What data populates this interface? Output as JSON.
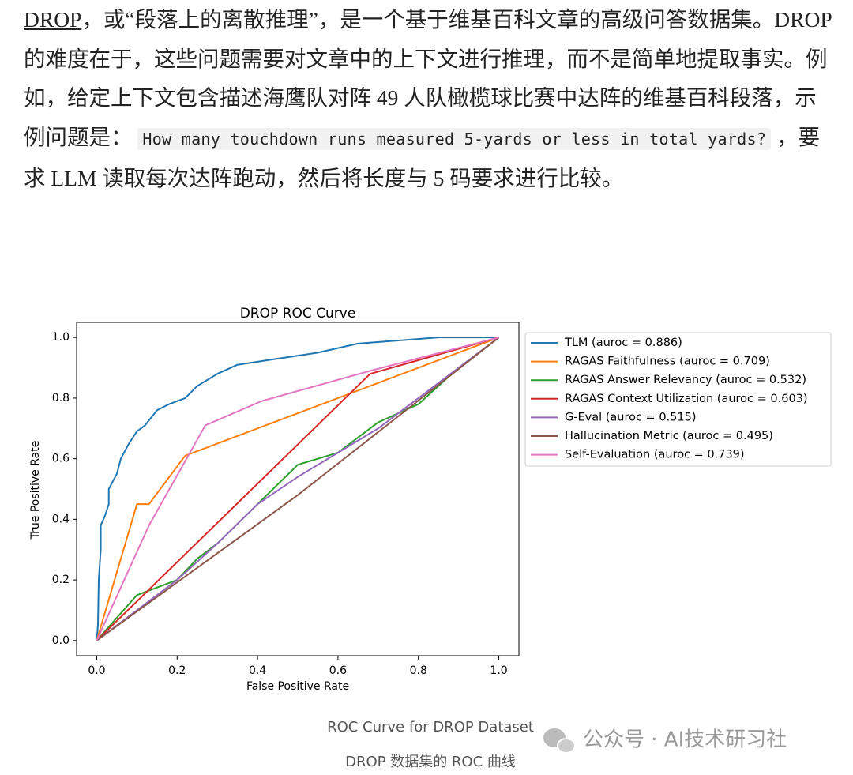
{
  "paragraph": {
    "link": "DROP",
    "text1": "，或“段落上的离散推理”，是一个基于维基百科文章的高级问答数据集。DROP 的难度在于，这些问题需要对文章中的上下文进行推理，而不是简单地提取事实。例如，给定上下文包含描述海鹰队对阵 49 人队橄榄球比赛中达阵的维基百科段落，示例问题是：",
    "code": "How many touchdown runs measured 5-yards or less in total yards?",
    "text2": "，要求 LLM 读取每次达阵跑动，然后将长度与 5 码要求进行比较。"
  },
  "chart_data": {
    "type": "line",
    "title": "DROP ROC Curve",
    "xlabel": "False Positive Rate",
    "ylabel": "True Positive Rate",
    "xlim": [
      -0.05,
      1.05
    ],
    "ylim": [
      -0.05,
      1.05
    ],
    "xticks": [
      {
        "value": 0,
        "label": "0.0"
      },
      0.2,
      0.4,
      0.6,
      0.8,
      {
        "value": 1,
        "label": "1.0"
      }
    ],
    "yticks": [
      {
        "value": 0,
        "label": "0.0"
      },
      0.2,
      0.4,
      0.6,
      0.8,
      {
        "value": 1,
        "label": "1.0"
      }
    ],
    "grid": false,
    "legend": "outside-upper-right",
    "series": [
      {
        "name": "TLM (auroc = 0.886)",
        "color": "#1f77b4",
        "x": [
          0,
          0.003,
          0.005,
          0.01,
          0.01,
          0.02,
          0.03,
          0.03,
          0.05,
          0.06,
          0.08,
          0.1,
          0.12,
          0.15,
          0.18,
          0.22,
          0.25,
          0.3,
          0.35,
          0.45,
          0.55,
          0.65,
          0.75,
          0.85,
          1
        ],
        "values": [
          0,
          0.05,
          0.2,
          0.3,
          0.38,
          0.41,
          0.45,
          0.5,
          0.55,
          0.6,
          0.65,
          0.69,
          0.71,
          0.76,
          0.78,
          0.8,
          0.84,
          0.88,
          0.91,
          0.93,
          0.95,
          0.98,
          0.99,
          1,
          1
        ]
      },
      {
        "name": "RAGAS Faithfulness (auroc = 0.709)",
        "color": "#ff7f0e",
        "x": [
          0,
          0.1,
          0.13,
          0.22,
          1
        ],
        "values": [
          0,
          0.45,
          0.45,
          0.61,
          1
        ]
      },
      {
        "name": "RAGAS Answer Relevancy (auroc = 0.532)",
        "color": "#2ca02c",
        "x": [
          0,
          0.1,
          0.2,
          0.25,
          0.3,
          0.4,
          0.5,
          0.6,
          0.7,
          0.8,
          0.9,
          1
        ],
        "values": [
          0,
          0.15,
          0.2,
          0.27,
          0.32,
          0.45,
          0.58,
          0.62,
          0.72,
          0.78,
          0.9,
          1
        ]
      },
      {
        "name": "RAGAS Context Utilization (auroc = 0.603)",
        "color": "#d62728",
        "x": [
          0,
          0.68,
          1
        ],
        "values": [
          0,
          0.88,
          1
        ]
      },
      {
        "name": "G-Eval (auroc = 0.515)",
        "color": "#9467bd",
        "x": [
          0,
          0.2,
          0.3,
          0.4,
          0.5,
          0.6,
          0.7,
          0.8,
          0.9,
          1
        ],
        "values": [
          0,
          0.2,
          0.32,
          0.45,
          0.54,
          0.62,
          0.7,
          0.8,
          0.9,
          1
        ]
      },
      {
        "name": "Hallucination Metric (auroc = 0.495)",
        "color": "#8c564b",
        "x": [
          0,
          0.5,
          1
        ],
        "values": [
          0,
          0.48,
          1
        ]
      },
      {
        "name": "Self-Evaluation (auroc = 0.739)",
        "color": "#e377c2",
        "x": [
          0,
          0.13,
          0.27,
          0.41,
          0.68,
          1
        ],
        "values": [
          0,
          0.38,
          0.71,
          0.79,
          0.89,
          1
        ]
      }
    ]
  },
  "caption": "ROC Curve for DROP Dataset",
  "caption_zh": "DROP 数据集的 ROC 曲线",
  "watermark": "公众号 · AI技术研习社"
}
